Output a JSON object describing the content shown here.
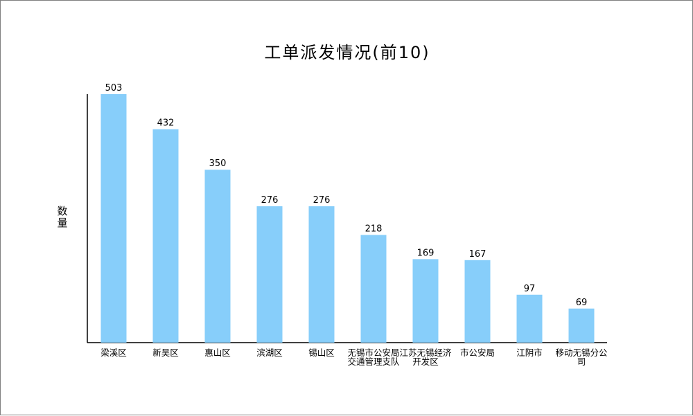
{
  "chart_data": {
    "type": "bar",
    "title": "工单派发情况(前10)",
    "xlabel": "",
    "ylabel": "数量",
    "categories": [
      "梁溪区",
      "新吴区",
      "惠山区",
      "滨湖区",
      "锡山区",
      "无锡市公安局交通管理支队",
      "江苏无锡经济开发区",
      "市公安局",
      "江阴市",
      "移动无锡分公司"
    ],
    "series": [
      {
        "values": [
          503,
          432,
          350,
          276,
          276,
          218,
          169,
          167,
          97,
          69
        ]
      }
    ],
    "ylim": [
      0,
      503
    ],
    "grid": false,
    "legend": "none",
    "bar_color": "#87cefa"
  }
}
